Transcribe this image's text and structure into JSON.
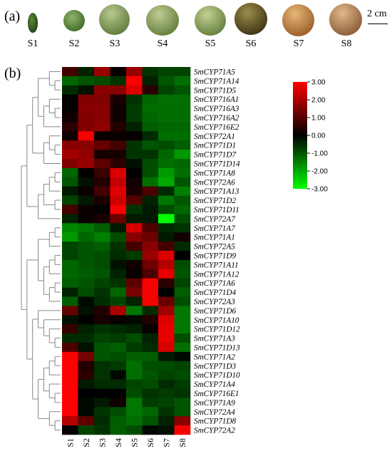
{
  "panel_a": {
    "label": "(a)",
    "stages": [
      "S1",
      "S2",
      "S3",
      "S4",
      "S5",
      "S6",
      "S7",
      "S8"
    ],
    "scale_bar": "2 cm"
  },
  "panel_b": {
    "label": "(b)"
  },
  "chart_data": {
    "type": "heatmap",
    "columns": [
      "S1",
      "S2",
      "S3",
      "S4",
      "S5",
      "S6",
      "S7",
      "S8"
    ],
    "rows": [
      "SmCYP71A5",
      "SmCYP71A14",
      "SmCYP71D5",
      "SmCYP716A1",
      "SmCYP716A3",
      "SmCYP716A2",
      "SmCYP716E2",
      "SmCYP72A1",
      "SmCYP71D1",
      "SmCYP71D7",
      "SmCYP71D14",
      "SmCYP71A8",
      "SmCYP72A6",
      "SmCYP71A13",
      "SmCYP71D2",
      "SmCYP71D11",
      "SmCYP72A7",
      "SmCYP71A7",
      "SmCYP71A1",
      "SmCYP72A5",
      "SmCYP71D9",
      "SmCYP71A11",
      "SmCYP71A12",
      "SmCYP71A6",
      "SmCYP71D4",
      "SmCYP72A3",
      "SmCYP71D6",
      "SmCYP71A10",
      "SmCYP71D12",
      "SmCYP71A3",
      "SmCYP71D13",
      "SmCYP71A2",
      "SmCYP71D3",
      "SmCYP71D10",
      "SmCYP71A4",
      "SmCYP716E1",
      "SmCYP71A9",
      "SmCYP72A4",
      "SmCYP71D8",
      "SmCYP72A2"
    ],
    "values": [
      [
        0.8,
        -0.4,
        1.8,
        0.1,
        1.8,
        -0.6,
        -0.8,
        -0.8
      ],
      [
        -1.2,
        -1.0,
        -0.9,
        -0.6,
        3.0,
        -0.4,
        -1.0,
        -1.3
      ],
      [
        -0.5,
        -0.2,
        1.6,
        1.6,
        2.6,
        0.5,
        -0.8,
        -1.0
      ],
      [
        0.0,
        1.5,
        1.5,
        0.3,
        -0.6,
        -1.2,
        -1.3,
        -1.3
      ],
      [
        0.0,
        1.6,
        1.6,
        0.2,
        -0.7,
        -1.3,
        -1.3,
        -1.3
      ],
      [
        0.2,
        1.5,
        1.6,
        0.2,
        -0.7,
        -1.2,
        -1.3,
        -1.3
      ],
      [
        0.5,
        1.5,
        1.7,
        0.4,
        -0.4,
        -1.1,
        -1.2,
        -1.2
      ],
      [
        0.2,
        2.9,
        0.1,
        0.1,
        0.1,
        -0.5,
        -1.3,
        -1.3
      ],
      [
        1.6,
        1.6,
        1.2,
        0.8,
        -0.6,
        -1.0,
        -0.9,
        -1.1
      ],
      [
        1.9,
        1.7,
        0.3,
        0.3,
        -0.6,
        -0.6,
        -1.2,
        -1.8
      ],
      [
        1.5,
        1.8,
        1.1,
        0.5,
        -0.2,
        -0.9,
        -1.3,
        -1.2
      ],
      [
        -1.2,
        0.0,
        0.7,
        2.6,
        0.0,
        -0.9,
        -1.8,
        -1.3
      ],
      [
        -1.0,
        -0.2,
        0.4,
        2.3,
        0.2,
        -1.3,
        -2.0,
        -1.0
      ],
      [
        -0.3,
        0.1,
        0.8,
        2.6,
        0.3,
        0.9,
        -0.5,
        -1.5
      ],
      [
        -0.8,
        -0.3,
        0.3,
        2.4,
        1.0,
        -0.4,
        -1.4,
        -1.0
      ],
      [
        0.8,
        0.1,
        0.0,
        2.9,
        -0.6,
        -0.3,
        -0.9,
        -1.2
      ],
      [
        -0.4,
        0.1,
        0.3,
        1.3,
        -0.3,
        -0.3,
        -3.0,
        -0.9
      ],
      [
        -1.6,
        -1.4,
        -1.1,
        -0.3,
        2.5,
        0.9,
        -0.5,
        -0.6
      ],
      [
        -1.8,
        -1.2,
        -1.5,
        -0.9,
        1.6,
        1.3,
        -0.3,
        0.2
      ],
      [
        -0.8,
        -1.0,
        -1.1,
        -0.6,
        0.8,
        1.6,
        0.8,
        -0.5
      ],
      [
        -0.8,
        -1.0,
        -0.9,
        -0.5,
        -0.7,
        1.8,
        2.6,
        0.0
      ],
      [
        -1.2,
        -1.0,
        -0.9,
        -0.2,
        0.2,
        1.3,
        2.1,
        -0.9
      ],
      [
        -1.2,
        -1.1,
        -1.0,
        -0.4,
        0.1,
        0.9,
        2.7,
        -1.0
      ],
      [
        -1.1,
        -1.0,
        -0.8,
        -0.6,
        1.1,
        2.9,
        0.5,
        -0.8
      ],
      [
        -0.4,
        -0.9,
        -0.6,
        -1.2,
        1.4,
        2.9,
        0.0,
        -1.1
      ],
      [
        -1.1,
        -0.1,
        -0.5,
        -0.8,
        -0.4,
        2.9,
        1.2,
        -0.9
      ],
      [
        1.2,
        -0.2,
        0.4,
        2.0,
        -1.4,
        -0.5,
        1.9,
        -1.4
      ],
      [
        -0.2,
        0.0,
        0.3,
        0.1,
        -0.1,
        0.4,
        2.6,
        -1.4
      ],
      [
        0.6,
        -0.4,
        -0.6,
        -0.5,
        -0.4,
        0.1,
        2.7,
        -1.4
      ],
      [
        -0.5,
        -0.5,
        -0.8,
        -0.7,
        -0.9,
        -0.4,
        2.7,
        -0.9
      ],
      [
        0.9,
        -0.2,
        -1.0,
        -1.1,
        -0.7,
        -0.5,
        2.5,
        -1.3
      ],
      [
        3.0,
        1.4,
        -1.0,
        -0.9,
        -1.1,
        -1.1,
        -0.3,
        -0.1
      ],
      [
        3.0,
        0.4,
        -0.6,
        -0.7,
        -1.3,
        -0.9,
        -0.9,
        -0.8
      ],
      [
        3.0,
        0.5,
        -0.6,
        -0.1,
        -1.3,
        -1.0,
        -0.8,
        -0.9
      ],
      [
        3.0,
        -0.3,
        -0.5,
        -0.5,
        -0.8,
        -0.9,
        -0.5,
        -0.7
      ],
      [
        3.0,
        0.0,
        0.0,
        0.0,
        -0.9,
        -0.6,
        -0.7,
        -0.6
      ],
      [
        3.0,
        -0.1,
        -0.3,
        0.2,
        -1.4,
        -0.7,
        -0.8,
        -1.0
      ],
      [
        3.0,
        -0.1,
        -0.6,
        -0.9,
        -1.4,
        -1.2,
        -0.6,
        -1.0
      ],
      [
        2.1,
        1.1,
        -0.5,
        -1.1,
        -1.3,
        -1.0,
        -0.4,
        1.6
      ],
      [
        0.0,
        -0.8,
        -0.6,
        -1.1,
        -0.9,
        -0.1,
        -0.2,
        2.9
      ]
    ],
    "legend": {
      "ticks": [
        "3.00",
        "2.00",
        "1.00",
        "0.00",
        "-1.00",
        "-2.00",
        "-3.00"
      ],
      "min": -3,
      "max": 3,
      "colors": {
        "high": "#ff0000",
        "mid": "#000000",
        "low": "#00ff00"
      }
    }
  }
}
